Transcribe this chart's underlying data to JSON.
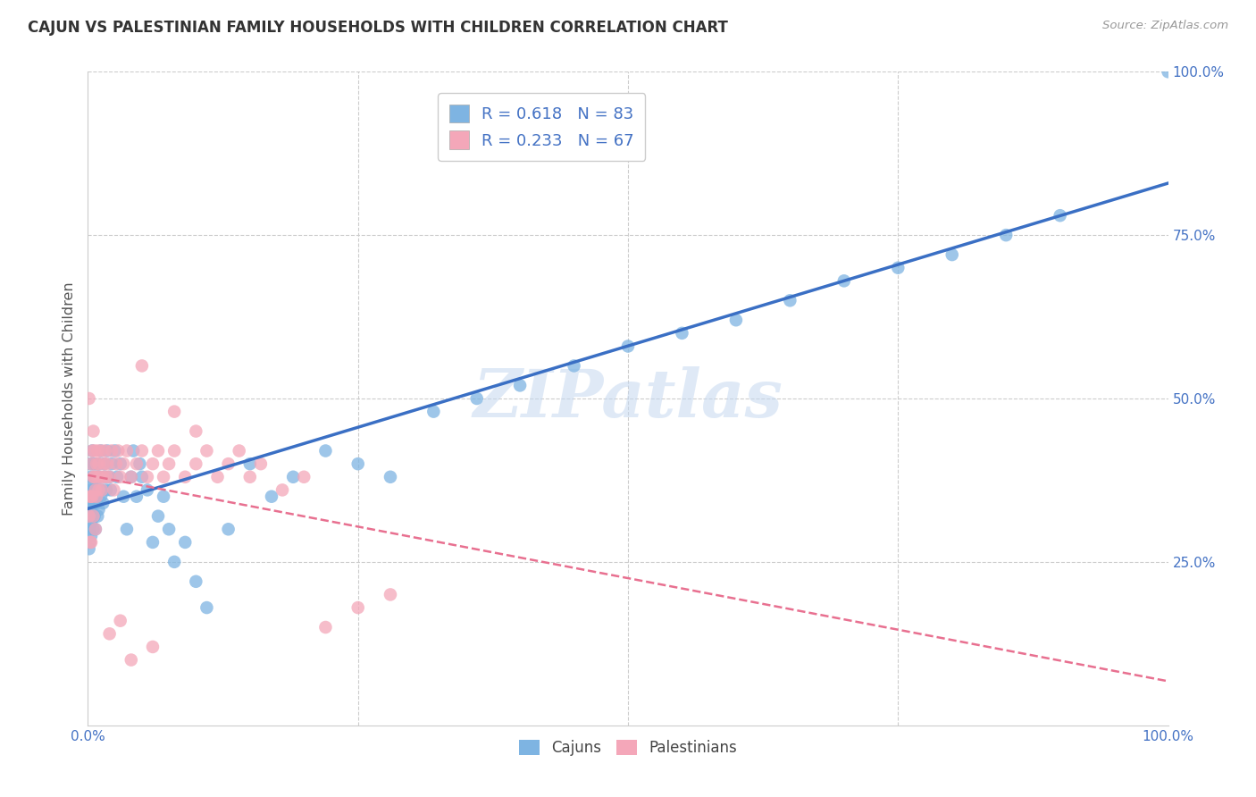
{
  "title": "CAJUN VS PALESTINIAN FAMILY HOUSEHOLDS WITH CHILDREN CORRELATION CHART",
  "source": "Source: ZipAtlas.com",
  "ylabel": "Family Households with Children",
  "watermark": "ZIPatlas",
  "xlim": [
    0,
    1
  ],
  "ylim": [
    0,
    1
  ],
  "cajun_color": "#7EB4E2",
  "palestinian_color": "#F4A7B9",
  "cajun_line_color": "#3A6FC4",
  "palestinian_line_color": "#E87090",
  "tick_color": "#4472C4",
  "ylabel_color": "#555555",
  "title_color": "#333333",
  "source_color": "#999999",
  "grid_color": "#CCCCCC",
  "background_color": "#FFFFFF",
  "cajun_R": 0.618,
  "cajun_N": 83,
  "palestinian_R": 0.233,
  "palestinian_N": 67,
  "cajun_x": [
    0.001,
    0.001,
    0.001,
    0.002,
    0.002,
    0.002,
    0.002,
    0.003,
    0.003,
    0.003,
    0.003,
    0.003,
    0.004,
    0.004,
    0.004,
    0.005,
    0.005,
    0.005,
    0.005,
    0.006,
    0.006,
    0.006,
    0.007,
    0.007,
    0.008,
    0.008,
    0.009,
    0.009,
    0.01,
    0.01,
    0.01,
    0.011,
    0.012,
    0.012,
    0.013,
    0.014,
    0.015,
    0.016,
    0.017,
    0.018,
    0.02,
    0.021,
    0.022,
    0.025,
    0.027,
    0.03,
    0.033,
    0.036,
    0.04,
    0.042,
    0.045,
    0.048,
    0.05,
    0.055,
    0.06,
    0.065,
    0.07,
    0.075,
    0.08,
    0.09,
    0.1,
    0.11,
    0.13,
    0.15,
    0.17,
    0.19,
    0.22,
    0.25,
    0.28,
    0.32,
    0.36,
    0.4,
    0.45,
    0.5,
    0.55,
    0.6,
    0.65,
    0.7,
    0.75,
    0.8,
    0.85,
    0.9,
    1.0
  ],
  "cajun_y": [
    0.3,
    0.34,
    0.27,
    0.36,
    0.32,
    0.28,
    0.4,
    0.33,
    0.29,
    0.38,
    0.35,
    0.31,
    0.37,
    0.32,
    0.42,
    0.36,
    0.3,
    0.34,
    0.4,
    0.35,
    0.32,
    0.38,
    0.36,
    0.3,
    0.4,
    0.34,
    0.38,
    0.32,
    0.36,
    0.4,
    0.33,
    0.38,
    0.35,
    0.42,
    0.36,
    0.34,
    0.4,
    0.38,
    0.36,
    0.42,
    0.38,
    0.36,
    0.4,
    0.42,
    0.38,
    0.4,
    0.35,
    0.3,
    0.38,
    0.42,
    0.35,
    0.4,
    0.38,
    0.36,
    0.28,
    0.32,
    0.35,
    0.3,
    0.25,
    0.28,
    0.22,
    0.18,
    0.3,
    0.4,
    0.35,
    0.38,
    0.42,
    0.4,
    0.38,
    0.48,
    0.5,
    0.52,
    0.55,
    0.58,
    0.6,
    0.62,
    0.65,
    0.68,
    0.7,
    0.72,
    0.75,
    0.78,
    1.0
  ],
  "palestinian_x": [
    0.001,
    0.001,
    0.002,
    0.002,
    0.003,
    0.003,
    0.003,
    0.004,
    0.004,
    0.005,
    0.005,
    0.005,
    0.006,
    0.006,
    0.007,
    0.007,
    0.008,
    0.008,
    0.009,
    0.009,
    0.01,
    0.01,
    0.011,
    0.012,
    0.013,
    0.014,
    0.015,
    0.016,
    0.017,
    0.018,
    0.02,
    0.022,
    0.024,
    0.026,
    0.028,
    0.03,
    0.033,
    0.036,
    0.04,
    0.045,
    0.05,
    0.055,
    0.06,
    0.065,
    0.07,
    0.075,
    0.08,
    0.09,
    0.1,
    0.11,
    0.12,
    0.13,
    0.14,
    0.15,
    0.16,
    0.18,
    0.2,
    0.22,
    0.25,
    0.28,
    0.05,
    0.08,
    0.1,
    0.04,
    0.06,
    0.03,
    0.02
  ],
  "palestinian_y": [
    0.32,
    0.5,
    0.35,
    0.28,
    0.4,
    0.35,
    0.28,
    0.42,
    0.35,
    0.38,
    0.32,
    0.45,
    0.38,
    0.42,
    0.36,
    0.3,
    0.4,
    0.35,
    0.42,
    0.38,
    0.36,
    0.4,
    0.38,
    0.42,
    0.36,
    0.38,
    0.4,
    0.42,
    0.38,
    0.4,
    0.38,
    0.42,
    0.36,
    0.4,
    0.42,
    0.38,
    0.4,
    0.42,
    0.38,
    0.4,
    0.42,
    0.38,
    0.4,
    0.42,
    0.38,
    0.4,
    0.42,
    0.38,
    0.4,
    0.42,
    0.38,
    0.4,
    0.42,
    0.38,
    0.4,
    0.36,
    0.38,
    0.15,
    0.18,
    0.2,
    0.55,
    0.48,
    0.45,
    0.1,
    0.12,
    0.16,
    0.14
  ]
}
